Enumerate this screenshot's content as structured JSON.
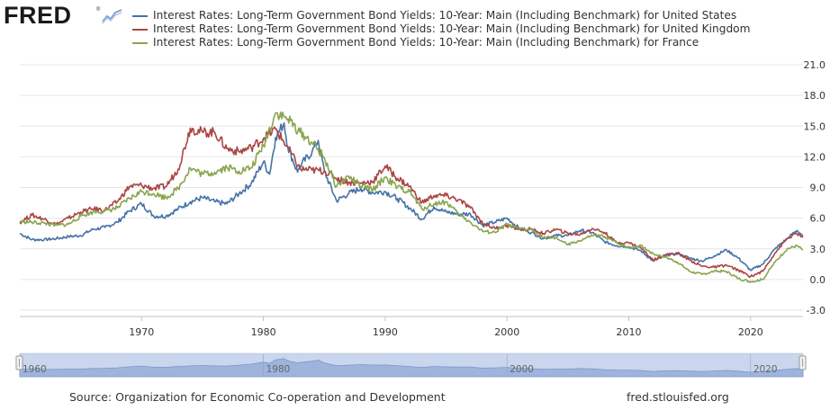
{
  "header": {
    "logo_text": "FRED"
  },
  "footer": {
    "source": "Source: Organization for Economic Co-operation and Development",
    "site": "fred.stlouisfed.org"
  },
  "colors": {
    "us": "#4572a7",
    "uk": "#aa4643",
    "fr": "#89a54e",
    "navigator_fill": "#9eb4dc",
    "navigator_bg": "#c9d6ee"
  },
  "chart_data": {
    "type": "line",
    "legend_position": "top",
    "grid": "horizontal",
    "ylim": [
      -3,
      21
    ],
    "y_ticks": [
      "21.0",
      "18.0",
      "15.0",
      "12.0",
      "9.0",
      "6.0",
      "3.0",
      "0.0",
      "-3.0"
    ],
    "x_ticks": [
      "1970",
      "1980",
      "1990",
      "2000",
      "2010",
      "2020"
    ],
    "navigator_labels": [
      "1960",
      "1980",
      "2000",
      "2020"
    ],
    "xlim": [
      1960,
      2024.3
    ],
    "series": [
      {
        "name": "Interest Rates: Long-Term Government Bond Yields: 10-Year: Main (Including Benchmark) for United States",
        "key": "us",
        "points": [
          [
            1960,
            4.5
          ],
          [
            1961,
            3.9
          ],
          [
            1962,
            3.9
          ],
          [
            1963,
            4.0
          ],
          [
            1964,
            4.2
          ],
          [
            1965,
            4.3
          ],
          [
            1966,
            4.9
          ],
          [
            1967,
            5.1
          ],
          [
            1968,
            5.6
          ],
          [
            1969,
            6.7
          ],
          [
            1970,
            7.4
          ],
          [
            1971,
            6.2
          ],
          [
            1972,
            6.2
          ],
          [
            1973,
            6.9
          ],
          [
            1974,
            7.6
          ],
          [
            1975,
            8.0
          ],
          [
            1976,
            7.6
          ],
          [
            1977,
            7.4
          ],
          [
            1978,
            8.4
          ],
          [
            1979,
            9.4
          ],
          [
            1980,
            11.5
          ],
          [
            1980.5,
            10.3
          ],
          [
            1981,
            13.9
          ],
          [
            1981.7,
            15.3
          ],
          [
            1982,
            13.0
          ],
          [
            1982.8,
            10.5
          ],
          [
            1983,
            11.1
          ],
          [
            1984,
            12.5
          ],
          [
            1984.5,
            13.6
          ],
          [
            1985,
            10.6
          ],
          [
            1986,
            7.7
          ],
          [
            1987,
            8.4
          ],
          [
            1988,
            8.9
          ],
          [
            1989,
            8.5
          ],
          [
            1990,
            8.6
          ],
          [
            1991,
            7.9
          ],
          [
            1992,
            7.0
          ],
          [
            1993,
            5.9
          ],
          [
            1994,
            7.1
          ],
          [
            1995,
            6.6
          ],
          [
            1996,
            6.4
          ],
          [
            1997,
            6.4
          ],
          [
            1998,
            5.3
          ],
          [
            1999,
            5.6
          ],
          [
            2000,
            6.0
          ],
          [
            2001,
            5.0
          ],
          [
            2002,
            4.6
          ],
          [
            2003,
            4.0
          ],
          [
            2004,
            4.3
          ],
          [
            2005,
            4.3
          ],
          [
            2006,
            4.8
          ],
          [
            2007,
            4.6
          ],
          [
            2008,
            3.7
          ],
          [
            2009,
            3.3
          ],
          [
            2010,
            3.2
          ],
          [
            2011,
            2.8
          ],
          [
            2012,
            1.8
          ],
          [
            2013,
            2.4
          ],
          [
            2014,
            2.5
          ],
          [
            2015,
            2.1
          ],
          [
            2016,
            1.8
          ],
          [
            2017,
            2.3
          ],
          [
            2018,
            2.9
          ],
          [
            2019,
            2.1
          ],
          [
            2020,
            0.9
          ],
          [
            2021,
            1.5
          ],
          [
            2022,
            3.0
          ],
          [
            2023,
            4.0
          ],
          [
            2023.8,
            4.8
          ],
          [
            2024.3,
            4.3
          ]
        ]
      },
      {
        "name": "Interest Rates: Long-Term Government Bond Yields: 10-Year: Main (Including Benchmark) for United Kingdom",
        "key": "uk",
        "points": [
          [
            1960,
            5.6
          ],
          [
            1961,
            6.3
          ],
          [
            1962,
            5.9
          ],
          [
            1963,
            5.4
          ],
          [
            1964,
            6.0
          ],
          [
            1965,
            6.6
          ],
          [
            1966,
            6.9
          ],
          [
            1967,
            6.8
          ],
          [
            1968,
            7.6
          ],
          [
            1969,
            9.1
          ],
          [
            1970,
            9.2
          ],
          [
            1971,
            8.9
          ],
          [
            1972,
            9.1
          ],
          [
            1973,
            10.8
          ],
          [
            1974,
            14.8
          ],
          [
            1975,
            14.4
          ],
          [
            1976,
            14.4
          ],
          [
            1977,
            12.8
          ],
          [
            1978,
            12.5
          ],
          [
            1979,
            12.9
          ],
          [
            1980,
            13.8
          ],
          [
            1981,
            14.7
          ],
          [
            1982,
            12.9
          ],
          [
            1983,
            10.8
          ],
          [
            1984,
            10.7
          ],
          [
            1985,
            10.6
          ],
          [
            1986,
            9.9
          ],
          [
            1987,
            9.5
          ],
          [
            1988,
            9.4
          ],
          [
            1989,
            9.6
          ],
          [
            1990,
            11.1
          ],
          [
            1991,
            9.9
          ],
          [
            1992,
            9.1
          ],
          [
            1993,
            7.5
          ],
          [
            1994,
            8.2
          ],
          [
            1995,
            8.2
          ],
          [
            1996,
            7.8
          ],
          [
            1997,
            7.0
          ],
          [
            1998,
            5.5
          ],
          [
            1999,
            5.0
          ],
          [
            2000,
            5.3
          ],
          [
            2001,
            4.9
          ],
          [
            2002,
            4.9
          ],
          [
            2003,
            4.5
          ],
          [
            2004,
            4.9
          ],
          [
            2005,
            4.5
          ],
          [
            2006,
            4.4
          ],
          [
            2007,
            5.0
          ],
          [
            2008,
            4.6
          ],
          [
            2009,
            3.6
          ],
          [
            2010,
            3.6
          ],
          [
            2011,
            3.1
          ],
          [
            2012,
            1.9
          ],
          [
            2013,
            2.4
          ],
          [
            2014,
            2.6
          ],
          [
            2015,
            1.9
          ],
          [
            2016,
            1.3
          ],
          [
            2017,
            1.2
          ],
          [
            2018,
            1.4
          ],
          [
            2019,
            0.9
          ],
          [
            2020,
            0.3
          ],
          [
            2021,
            0.8
          ],
          [
            2022,
            2.6
          ],
          [
            2023,
            4.0
          ],
          [
            2023.8,
            4.5
          ],
          [
            2024.3,
            4.1
          ]
        ]
      },
      {
        "name": "Interest Rates: Long-Term Government Bond Yields: 10-Year: Main (Including Benchmark) for France",
        "key": "fr",
        "points": [
          [
            1960,
            5.7
          ],
          [
            1961,
            5.6
          ],
          [
            1962,
            5.5
          ],
          [
            1963,
            5.3
          ],
          [
            1964,
            5.4
          ],
          [
            1965,
            6.2
          ],
          [
            1966,
            6.6
          ],
          [
            1967,
            6.7
          ],
          [
            1968,
            7.0
          ],
          [
            1969,
            7.9
          ],
          [
            1970,
            8.6
          ],
          [
            1971,
            8.4
          ],
          [
            1972,
            8.0
          ],
          [
            1973,
            8.9
          ],
          [
            1974,
            10.9
          ],
          [
            1975,
            10.3
          ],
          [
            1976,
            10.5
          ],
          [
            1977,
            11.0
          ],
          [
            1978,
            10.6
          ],
          [
            1979,
            10.9
          ],
          [
            1980,
            13.1
          ],
          [
            1981,
            16.3
          ],
          [
            1982,
            15.7
          ],
          [
            1983,
            14.4
          ],
          [
            1984,
            13.4
          ],
          [
            1985,
            11.9
          ],
          [
            1986,
            9.1
          ],
          [
            1987,
            10.1
          ],
          [
            1988,
            9.1
          ],
          [
            1989,
            8.8
          ],
          [
            1990,
            10.0
          ],
          [
            1991,
            9.0
          ],
          [
            1992,
            8.6
          ],
          [
            1993,
            6.9
          ],
          [
            1994,
            7.4
          ],
          [
            1995,
            7.6
          ],
          [
            1996,
            6.4
          ],
          [
            1997,
            5.6
          ],
          [
            1998,
            4.7
          ],
          [
            1999,
            4.6
          ],
          [
            2000,
            5.4
          ],
          [
            2001,
            4.9
          ],
          [
            2002,
            4.9
          ],
          [
            2003,
            4.1
          ],
          [
            2004,
            4.1
          ],
          [
            2005,
            3.4
          ],
          [
            2006,
            3.8
          ],
          [
            2007,
            4.3
          ],
          [
            2008,
            4.2
          ],
          [
            2009,
            3.6
          ],
          [
            2010,
            3.1
          ],
          [
            2011,
            3.3
          ],
          [
            2012,
            2.5
          ],
          [
            2013,
            2.2
          ],
          [
            2014,
            1.7
          ],
          [
            2015,
            0.8
          ],
          [
            2016,
            0.5
          ],
          [
            2017,
            0.8
          ],
          [
            2018,
            0.8
          ],
          [
            2019,
            0.1
          ],
          [
            2020,
            -0.2
          ],
          [
            2021,
            0.0
          ],
          [
            2022,
            1.7
          ],
          [
            2023,
            3.0
          ],
          [
            2023.8,
            3.3
          ],
          [
            2024.3,
            2.9
          ]
        ]
      }
    ]
  }
}
